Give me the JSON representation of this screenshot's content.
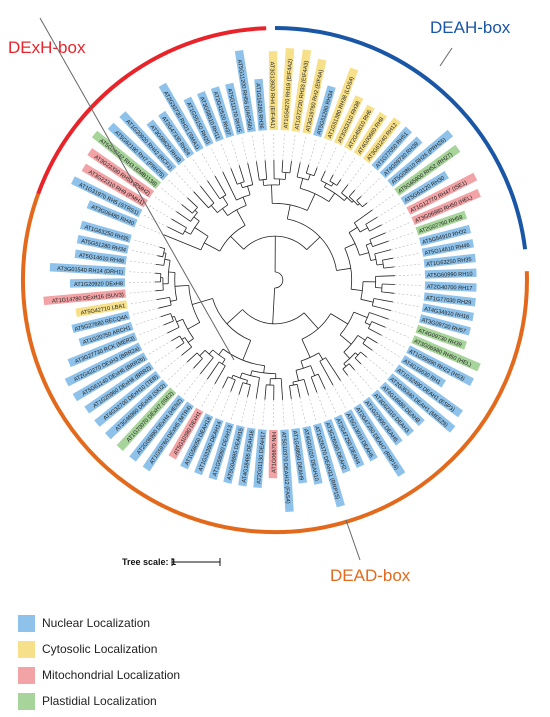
{
  "families": [
    {
      "name": "DExH-box",
      "color": "#e8242a"
    },
    {
      "name": "DEAH-box",
      "color": "#1a56a6"
    },
    {
      "name": "DEAD-box",
      "color": "#e36a1c"
    }
  ],
  "tree_scale": {
    "label": "Tree scale: 1"
  },
  "legend": [
    {
      "label": "Nuclear Localization",
      "color": "#8ec2ea"
    },
    {
      "label": "Cytosolic Localization",
      "color": "#f7e08a"
    },
    {
      "label": "Mitochondrial Localization",
      "color": "#f2a3a6"
    },
    {
      "label": "Plastidial Localization",
      "color": "#a7d49a"
    }
  ],
  "leaves": [
    {
      "label": "AT3G06480 RH40",
      "loc": "N"
    },
    {
      "label": "AT1G31970 RH5 (STRS1)",
      "loc": "N"
    },
    {
      "label": "AT3G22310 RH9 (PMH1)",
      "loc": "M"
    },
    {
      "label": "AT3G22330 RH53 (PMH2)",
      "loc": "M"
    },
    {
      "label": "AT5G26742 RH3 (EMB1138)",
      "loc": "P"
    },
    {
      "label": "AT5G62190 RH7 (PRH75)",
      "loc": "N"
    },
    {
      "label": "AT1G20920 RH42 (RCF1)",
      "loc": "N"
    },
    {
      "label": "AT3G09620 RH48",
      "loc": "N"
    },
    {
      "label": "AT2G47330 RH24",
      "loc": "N"
    },
    {
      "label": "AT2G33730 RH21 (SMA1)",
      "loc": "N"
    },
    {
      "label": "AT1G55150 RH20",
      "loc": "N"
    },
    {
      "label": "AT3G58510 RH11",
      "loc": "N"
    },
    {
      "label": "AT2G42520 RH37",
      "loc": "N"
    },
    {
      "label": "AT5G11170 RH15",
      "loc": "N"
    },
    {
      "label": "AT5G11200 RH56 (UAP56b)",
      "loc": "N"
    },
    {
      "label": "AT1G16280 RH36",
      "loc": "N"
    },
    {
      "label": "AT3G13920 RH4 (EIF4A1)",
      "loc": "C"
    },
    {
      "label": "AT1G54270 RH19 (EIF4A2)",
      "loc": "C"
    },
    {
      "label": "AT1G72730 RH33 (EIF4A3)",
      "loc": "C"
    },
    {
      "label": "AT3G19760 RH2 (EIF4A)",
      "loc": "C"
    },
    {
      "label": "AT5G51280 RH34",
      "loc": "N"
    },
    {
      "label": "AT1G51380 RH38 (LOS4)",
      "loc": "C"
    },
    {
      "label": "AT3G53110 RH38",
      "loc": "C"
    },
    {
      "label": "AT2G45810 RH6",
      "loc": "C"
    },
    {
      "label": "AT4G00660 RH8",
      "loc": "C"
    },
    {
      "label": "AT3G61240 RH12",
      "loc": "C"
    },
    {
      "label": "AT1G77050 RH51",
      "loc": "N"
    },
    {
      "label": "AT4G09730 RH39",
      "loc": "N"
    },
    {
      "label": "AT5G08610 RH26 (PRH26)",
      "loc": "N"
    },
    {
      "label": "AT5G65900 RH52 (RH27)",
      "loc": "P"
    },
    {
      "label": "AT5G63120 RH30",
      "loc": "N"
    },
    {
      "label": "AT1G12770 RH47 (ISE1)",
      "loc": "M"
    },
    {
      "label": "AT3G06980 RH50 (HEL)",
      "loc": "M"
    },
    {
      "label": "AT2G07750 RH58",
      "loc": "P"
    },
    {
      "label": "AT5G54910 RH32",
      "loc": "N"
    },
    {
      "label": "AT5G14610 RH46",
      "loc": "N"
    },
    {
      "label": "AT1G63250 RH35",
      "loc": "N"
    },
    {
      "label": "AT5G60990 RH10",
      "loc": "N"
    },
    {
      "label": "AT2G40700 RH17",
      "loc": "N"
    },
    {
      "label": "AT1G77030 RH29",
      "loc": "N"
    },
    {
      "label": "AT4G34910 RH16",
      "loc": "N"
    },
    {
      "label": "AT3G09720 RH57",
      "loc": "N"
    },
    {
      "label": "AT4G09730 RH39",
      "loc": "P"
    },
    {
      "label": "AT3G06980 RH50 (HEL)",
      "loc": "P"
    },
    {
      "label": "AT1G59990 RH22 (HS3)",
      "loc": "N"
    },
    {
      "label": "AT4G16630 RH1",
      "loc": "N"
    },
    {
      "label": "AT1G32490 DEAH1 (ESP3)",
      "loc": "N"
    },
    {
      "label": "AT2G35340 DEAH1 (MEE29)",
      "loc": "N"
    },
    {
      "label": "AT4G16680 DEAH8",
      "loc": "N"
    },
    {
      "label": "AT3G62310 DEAH3",
      "loc": "N"
    },
    {
      "label": "AT1G27900 DEAH5",
      "loc": "N"
    },
    {
      "label": "AT2G47250 DEAH7 (RRP16)",
      "loc": "N"
    },
    {
      "label": "AT5G13010 DEAH6",
      "loc": "N"
    },
    {
      "label": "AT2G47250 DEAH4",
      "loc": "N"
    },
    {
      "label": "AT3G26560 DEAH2",
      "loc": "N"
    },
    {
      "label": "AT1G26370 DEAH11 (RRP15)",
      "loc": "N"
    },
    {
      "label": "AT4G01020 DEAH10",
      "loc": "N"
    },
    {
      "label": "AT1G48650 DEAH9",
      "loc": "N"
    },
    {
      "label": "AT5G10370 DEAH12 (FAS4)",
      "loc": "N"
    },
    {
      "label": "AT1G06670 NIH",
      "loc": "M"
    },
    {
      "label": "AT2G01130 DEAH17",
      "loc": "N"
    },
    {
      "label": "AT4G18465 DEAH16",
      "loc": "N"
    },
    {
      "label": "AT5G04895 DEAH15",
      "loc": "N"
    },
    {
      "label": "AT1G58060 DEAH13",
      "loc": "N"
    },
    {
      "label": "AT1G33390 DEAH14",
      "loc": "N"
    },
    {
      "label": "AT1G58050 DEAH18",
      "loc": "N"
    },
    {
      "label": "AT5G10380 DExH1",
      "loc": "M"
    },
    {
      "label": "AT1G59760 DExH5 (MTR4)",
      "loc": "N"
    },
    {
      "label": "AT2G06990 DExH4 (HEN2)",
      "loc": "N"
    },
    {
      "label": "AT1G70070 DExH7 (ISE2)",
      "loc": "P"
    },
    {
      "label": "AT3G46960 DExH9 (SKI2)",
      "loc": "N"
    },
    {
      "label": "AT4G32700 DExH10 (TEB)",
      "loc": "N"
    },
    {
      "label": "AT1G20960 DExH8 (BRR2)",
      "loc": "N"
    },
    {
      "label": "AT5G61140 DExH6 (BRR2b)",
      "loc": "N"
    },
    {
      "label": "AT2G42270 DExH3 (BRR2a)",
      "loc": "N"
    },
    {
      "label": "AT3G27730 RCK (MER3)",
      "loc": "N"
    },
    {
      "label": "AT1G20750 ARCH1",
      "loc": "N"
    },
    {
      "label": "AT5G27680 RECQ4A",
      "loc": "N"
    },
    {
      "label": "AT5G42710 LBA1",
      "loc": "C"
    },
    {
      "label": "AT1G14780 DExH16 (SUV3)",
      "loc": "M"
    },
    {
      "label": "AT1G20920 DExH8",
      "loc": "N"
    },
    {
      "label": "AT3G01540 RH14 (DRH1)",
      "loc": "N"
    },
    {
      "label": "AT5G14610 RH46",
      "loc": "N"
    },
    {
      "label": "AT5G51280 RH34",
      "loc": "N"
    },
    {
      "label": "AT1G63250 RH35",
      "loc": "N"
    }
  ]
}
